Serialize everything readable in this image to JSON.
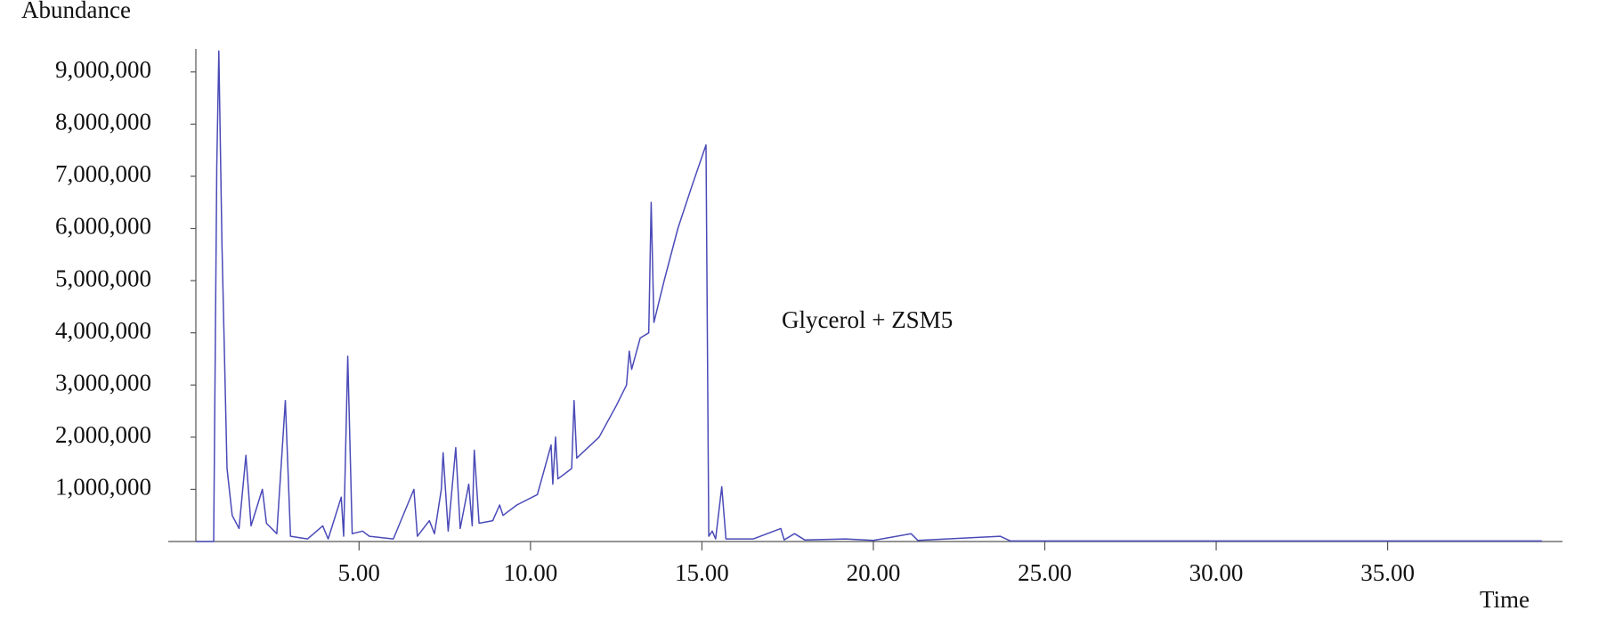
{
  "chart_data": {
    "type": "line",
    "y_label": "Abundance",
    "x_label": "Time",
    "annotation": "Glycerol + ZSM5",
    "color": "#4a4ab8",
    "xlim": [
      0.24,
      40.1
    ],
    "ylim": [
      0,
      9440000
    ],
    "xticks": [
      {
        "value": 5,
        "label": "5.00"
      },
      {
        "value": 10,
        "label": "10.00"
      },
      {
        "value": 15,
        "label": "15.00"
      },
      {
        "value": 20,
        "label": "20.00"
      },
      {
        "value": 25,
        "label": "25.00"
      },
      {
        "value": 30,
        "label": "30.00"
      },
      {
        "value": 35,
        "label": "35.00"
      }
    ],
    "yticks": [
      {
        "value": 1000000,
        "label": "1,000,000"
      },
      {
        "value": 2000000,
        "label": "2,000,000"
      },
      {
        "value": 3000000,
        "label": "3,000,000"
      },
      {
        "value": 4000000,
        "label": "4,000,000"
      },
      {
        "value": 5000000,
        "label": "5,000,000"
      },
      {
        "value": 6000000,
        "label": "6,000,000"
      },
      {
        "value": 7000000,
        "label": "7,000,000"
      },
      {
        "value": 8000000,
        "label": "8,000,000"
      },
      {
        "value": 9000000,
        "label": "9,000,000"
      }
    ],
    "x": [
      0.24,
      0.6,
      0.76,
      0.85,
      0.91,
      1.0,
      1.15,
      1.3,
      1.5,
      1.7,
      1.85,
      2.18,
      2.3,
      2.6,
      2.85,
      3.0,
      3.5,
      3.94,
      4.1,
      4.48,
      4.55,
      4.67,
      4.8,
      5.1,
      5.3,
      6.0,
      6.6,
      6.7,
      7.05,
      7.2,
      7.4,
      7.45,
      7.6,
      7.82,
      7.95,
      8.2,
      8.3,
      8.36,
      8.5,
      8.9,
      9.1,
      9.2,
      9.6,
      10.2,
      10.6,
      10.65,
      10.73,
      10.8,
      11.2,
      11.27,
      11.35,
      12.0,
      12.5,
      12.8,
      12.88,
      12.95,
      13.2,
      13.45,
      13.52,
      13.6,
      13.9,
      14.3,
      14.7,
      15.12,
      15.2,
      15.3,
      15.4,
      15.58,
      15.7,
      16.5,
      17.3,
      17.4,
      17.7,
      18.0,
      19.2,
      20.0,
      21.1,
      21.3,
      23.7,
      24.0,
      39.5
    ],
    "values": [
      0,
      0,
      0,
      7200000,
      9400000,
      5700000,
      1400000,
      500000,
      250000,
      1650000,
      300000,
      1000000,
      350000,
      150000,
      2700000,
      100000,
      50000,
      300000,
      50000,
      850000,
      100000,
      3550000,
      150000,
      200000,
      100000,
      50000,
      1000000,
      100000,
      400000,
      150000,
      1000000,
      1700000,
      200000,
      1800000,
      250000,
      1100000,
      300000,
      1750000,
      350000,
      400000,
      700000,
      500000,
      700000,
      900000,
      1850000,
      1100000,
      2000000,
      1200000,
      1400000,
      2700000,
      1600000,
      2000000,
      2600000,
      3000000,
      3650000,
      3300000,
      3900000,
      4000000,
      6500000,
      4200000,
      5000000,
      6000000,
      6800000,
      7600000,
      100000,
      200000,
      50000,
      1050000,
      50000,
      50000,
      250000,
      30000,
      150000,
      30000,
      50000,
      20000,
      150000,
      20000,
      100000,
      10000,
      10000
    ]
  }
}
